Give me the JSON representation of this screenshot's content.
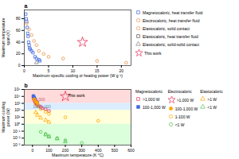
{
  "chart_data": [
    {
      "type": "scatter",
      "title": "a",
      "x_label": "Maximum specific cooling or heating power (W g⁻¹)",
      "y_label": "Maximum temperature\nspan (K)",
      "xlim": [
        0,
        22
      ],
      "ylim": [
        0,
        95
      ],
      "xticks": [
        0,
        5,
        10,
        15,
        20
      ],
      "yticks": [
        0,
        20,
        40,
        60,
        80
      ],
      "grid": false,
      "legend": "right",
      "series": [
        {
          "name": "Magnetocaloric, heat transfer fluid",
          "color": "#4169E1",
          "marker": "square_open",
          "x": [
            0.3,
            0.4,
            0.5,
            0.6,
            0.7,
            0.8,
            0.9,
            1.0,
            1.1,
            1.2,
            1.5,
            1.8,
            2.2,
            2.5,
            3.0,
            3.2
          ],
          "y": [
            88,
            80,
            75,
            65,
            55,
            50,
            40,
            35,
            30,
            28,
            25,
            22,
            15,
            12,
            10,
            8
          ]
        },
        {
          "name": "Electrocaloric, heat transfer fluid",
          "color": "#E8904A",
          "marker": "circle_open",
          "x": [
            0.5,
            1.0,
            1.5,
            2.0,
            2.5,
            3.0,
            4.0,
            5.0,
            8.0,
            15.0,
            21.0
          ],
          "y": [
            72,
            62,
            52,
            42,
            35,
            25,
            20,
            15,
            12,
            8,
            5
          ]
        },
        {
          "name": "Elastocaloric, solid contact",
          "color": "#E8904A",
          "marker": "circle_open",
          "x": [],
          "y": []
        },
        {
          "name": "Elastocaloric, heat transfer fluid",
          "color": "#505050",
          "marker": "square_open",
          "x": [],
          "y": []
        },
        {
          "name": "Elastocaloric, solid-solid contact",
          "color": "#808080",
          "marker": "triangle_open",
          "x": [
            2.5
          ],
          "y": [
            5
          ]
        },
        {
          "name": "This work",
          "color": "#E8325A",
          "marker": "star_open",
          "x": [
            12.0
          ],
          "y": [
            40
          ]
        }
      ]
    },
    {
      "type": "scatter",
      "title": "b",
      "x_label": "Maximum temperature (K °C)",
      "y_label": "Maximum cooling\npower (W)",
      "log": "y",
      "xlim": [
        -50,
        600
      ],
      "ylim": [
        0.001,
        100000
      ],
      "xticks": [
        0,
        100,
        200,
        300,
        400,
        500,
        600
      ],
      "yticks": [
        {
          "value": 0.001,
          "label": "10⁻³"
        },
        {
          "value": 0.01,
          "label": "10⁻²"
        },
        {
          "value": 0.1,
          "label": "10⁻¹"
        },
        {
          "value": 1,
          "label": "10⁰"
        },
        {
          "value": 10,
          "label": "10¹"
        },
        {
          "value": 100,
          "label": "10²"
        },
        {
          "value": 1000,
          "label": "10³"
        },
        {
          "value": 10000,
          "label": "10⁴"
        },
        {
          "value": 100000,
          "label": "10⁵"
        }
      ],
      "grid": false,
      "legend": "right",
      "bands": [
        {
          "min": 1000,
          "max": 100000,
          "color": "#FFCCCC"
        },
        {
          "min": 100,
          "max": 1000,
          "color": "#CCE5FF"
        },
        {
          "min": 1,
          "max": 100,
          "color": "#FFFFCC"
        },
        {
          "min": 0.001,
          "max": 1,
          "color": "#CCFFCC"
        }
      ],
      "annotations": [
        {
          "text": ">1,000",
          "x": 2,
          "y": 3000,
          "color": "#c06070"
        },
        {
          "text": "100-1,000",
          "x": 2,
          "y": 300,
          "color": "#6090b0"
        },
        {
          "text": "This work",
          "x": 215,
          "y": 12000
        }
      ],
      "series": [
        {
          "name": ">1,000 W",
          "group": "Magnetocaloric",
          "color": "#E8325A",
          "marker": "square_open",
          "x": [
            5,
            8,
            10,
            12,
            15,
            18,
            20,
            22,
            25,
            30,
            40,
            50,
            60,
            80,
            100
          ],
          "y": [
            8000,
            5000,
            4000,
            3000,
            2000,
            1500,
            1200,
            1000,
            800,
            600,
            400,
            300,
            200,
            150,
            80
          ]
        },
        {
          "name": "100-1,000 W",
          "group": "Magnetocaloric",
          "color": "#4169E1",
          "marker": "square_filled",
          "x": [
            5,
            8,
            10,
            12,
            15,
            18,
            20,
            25,
            30
          ],
          "y": [
            12000,
            9000,
            7000,
            5000,
            4000,
            3000,
            2000,
            1500,
            1200
          ]
        },
        {
          "name": ">1,000 W",
          "group": "Electrocaloric",
          "color": "#E8325A",
          "marker": "star_open",
          "x": [
            200
          ],
          "y": [
            10000
          ]
        },
        {
          "name": "100-1,000 W",
          "group": "Electrocaloric",
          "color": "#FFA500",
          "marker": "circle_filled",
          "x": [
            10,
            15,
            20,
            25,
            30
          ],
          "y": [
            4000,
            3000,
            2000,
            1500,
            1000
          ]
        },
        {
          "name": "1-100 W",
          "group": "Electrocaloric",
          "color": "#FFA500",
          "marker": "circle_open",
          "x": [
            20,
            30,
            50,
            80,
            100,
            200,
            400
          ],
          "y": [
            800,
            400,
            150,
            60,
            30,
            10,
            3
          ]
        },
        {
          "name": "<1 W",
          "group": "Electrocaloric",
          "color": "#50C050",
          "marker": "circle_open",
          "x": [
            50,
            80,
            100,
            150,
            200,
            300
          ],
          "y": [
            0.08,
            0.04,
            0.02,
            0.01,
            0.005,
            0.002
          ]
        },
        {
          "name": ">1 W",
          "group": "Elastocaloric",
          "color": "#FFA500",
          "marker": "triangle_open",
          "x": [
            20,
            30,
            50,
            80,
            100
          ],
          "y": [
            50,
            20,
            8,
            4,
            2
          ]
        },
        {
          "name": "<1 W",
          "group": "Elastocaloric",
          "color": "#50C050",
          "marker": "triangle_open",
          "x": [
            80,
            100,
            150,
            200
          ],
          "y": [
            0.03,
            0.015,
            0.008,
            0.003
          ]
        }
      ]
    }
  ]
}
